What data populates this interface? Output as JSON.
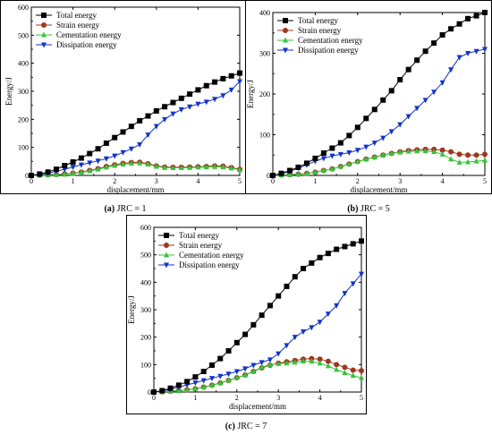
{
  "legend_labels": [
    "Total energy",
    "Strain energy",
    "Cementation energy",
    "Dissipation energy"
  ],
  "series_colors": {
    "total": "#000000",
    "strain": "#a0361f",
    "cementation": "#37c43a",
    "dissipation": "#1233c9"
  },
  "chart_data": [
    {
      "type": "line",
      "caption_tag": "(a)",
      "caption_text": "JRC = 1",
      "xlabel": "displacement/mm",
      "ylabel": "Energy/J",
      "xlim": [
        0,
        5
      ],
      "ylim": [
        0,
        600
      ],
      "xticks": [
        0,
        1,
        2,
        3,
        4,
        5
      ],
      "yticks": [
        0,
        100,
        200,
        300,
        400,
        500,
        600
      ],
      "legend": "top-left",
      "grid": false,
      "series": [
        {
          "name": "Total energy",
          "key": "total",
          "marker": "square",
          "x": [
            0,
            0.2,
            0.4,
            0.6,
            0.8,
            1.0,
            1.2,
            1.4,
            1.6,
            1.8,
            2.0,
            2.2,
            2.4,
            2.6,
            2.8,
            3.0,
            3.2,
            3.4,
            3.6,
            3.8,
            4.0,
            4.2,
            4.4,
            4.6,
            4.8,
            5.0
          ],
          "y": [
            0,
            5,
            12,
            22,
            35,
            48,
            62,
            78,
            95,
            115,
            135,
            155,
            175,
            195,
            212,
            230,
            245,
            260,
            275,
            290,
            305,
            320,
            333,
            345,
            355,
            365
          ]
        },
        {
          "name": "Strain energy",
          "key": "strain",
          "marker": "circle",
          "x": [
            0,
            0.2,
            0.4,
            0.6,
            0.8,
            1.0,
            1.2,
            1.4,
            1.6,
            1.8,
            2.0,
            2.2,
            2.4,
            2.6,
            2.8,
            3.0,
            3.2,
            3.4,
            3.6,
            3.8,
            4.0,
            4.2,
            4.4,
            4.6,
            4.8,
            5.0
          ],
          "y": [
            0,
            1,
            2,
            3,
            5,
            8,
            12,
            18,
            24,
            32,
            38,
            43,
            46,
            47,
            42,
            34,
            30,
            29,
            29,
            30,
            31,
            32,
            34,
            33,
            28,
            22
          ]
        },
        {
          "name": "Cementation energy",
          "key": "cementation",
          "marker": "triangle-up",
          "x": [
            0,
            0.2,
            0.4,
            0.6,
            0.8,
            1.0,
            1.2,
            1.4,
            1.6,
            1.8,
            2.0,
            2.2,
            2.4,
            2.6,
            2.8,
            3.0,
            3.2,
            3.4,
            3.6,
            3.8,
            4.0,
            4.2,
            4.4,
            4.6,
            4.8,
            5.0
          ],
          "y": [
            0,
            1,
            2,
            3,
            4,
            7,
            11,
            16,
            22,
            29,
            35,
            40,
            43,
            44,
            40,
            32,
            28,
            27,
            27,
            28,
            29,
            30,
            31,
            30,
            26,
            20
          ]
        },
        {
          "name": "Dissipation energy",
          "key": "dissipation",
          "marker": "triangle-down",
          "x": [
            0,
            0.2,
            0.4,
            0.6,
            0.8,
            1.0,
            1.2,
            1.4,
            1.6,
            1.8,
            2.0,
            2.2,
            2.4,
            2.6,
            2.8,
            3.0,
            3.2,
            3.4,
            3.6,
            3.8,
            4.0,
            4.2,
            4.4,
            4.6,
            4.8,
            5.0
          ],
          "y": [
            0,
            3,
            8,
            15,
            22,
            30,
            38,
            45,
            52,
            60,
            70,
            82,
            95,
            110,
            145,
            175,
            200,
            220,
            235,
            245,
            255,
            262,
            272,
            285,
            305,
            335
          ]
        }
      ]
    },
    {
      "type": "line",
      "caption_tag": "(b)",
      "caption_text": "JRC = 5",
      "xlabel": "displacement/mm",
      "ylabel": "Energy/J",
      "xlim": [
        0,
        5
      ],
      "ylim": [
        0,
        400
      ],
      "xticks": [
        0,
        1,
        2,
        3,
        4,
        5
      ],
      "yticks": [
        0,
        100,
        200,
        300,
        400
      ],
      "legend": "top-left",
      "grid": false,
      "series": [
        {
          "name": "Total energy",
          "key": "total",
          "marker": "square",
          "x": [
            0,
            0.2,
            0.4,
            0.6,
            0.8,
            1.0,
            1.2,
            1.4,
            1.6,
            1.8,
            2.0,
            2.2,
            2.4,
            2.6,
            2.8,
            3.0,
            3.2,
            3.4,
            3.6,
            3.8,
            4.0,
            4.2,
            4.4,
            4.6,
            4.8,
            5.0
          ],
          "y": [
            0,
            5,
            12,
            20,
            30,
            42,
            55,
            67,
            80,
            98,
            118,
            140,
            162,
            185,
            208,
            235,
            260,
            283,
            305,
            325,
            345,
            360,
            372,
            385,
            392,
            400
          ]
        },
        {
          "name": "Strain energy",
          "key": "strain",
          "marker": "circle",
          "x": [
            0,
            0.2,
            0.4,
            0.6,
            0.8,
            1.0,
            1.2,
            1.4,
            1.6,
            1.8,
            2.0,
            2.2,
            2.4,
            2.6,
            2.8,
            3.0,
            3.2,
            3.4,
            3.6,
            3.8,
            4.0,
            4.2,
            4.4,
            4.6,
            4.8,
            5.0
          ],
          "y": [
            0,
            1,
            2,
            3,
            5,
            8,
            12,
            16,
            22,
            28,
            34,
            40,
            45,
            50,
            54,
            58,
            61,
            63,
            64,
            64,
            62,
            58,
            52,
            50,
            50,
            52
          ]
        },
        {
          "name": "Cementation energy",
          "key": "cementation",
          "marker": "triangle-up",
          "x": [
            0,
            0.2,
            0.4,
            0.6,
            0.8,
            1.0,
            1.2,
            1.4,
            1.6,
            1.8,
            2.0,
            2.2,
            2.4,
            2.6,
            2.8,
            3.0,
            3.2,
            3.4,
            3.6,
            3.8,
            4.0,
            4.2,
            4.4,
            4.6,
            4.8,
            5.0
          ],
          "y": [
            0,
            1,
            2,
            3,
            5,
            8,
            12,
            16,
            22,
            28,
            34,
            40,
            45,
            50,
            54,
            57,
            59,
            60,
            60,
            58,
            52,
            40,
            32,
            33,
            35,
            37
          ]
        },
        {
          "name": "Dissipation energy",
          "key": "dissipation",
          "marker": "triangle-down",
          "x": [
            0,
            0.2,
            0.4,
            0.6,
            0.8,
            1.0,
            1.2,
            1.4,
            1.6,
            1.8,
            2.0,
            2.2,
            2.4,
            2.6,
            2.8,
            3.0,
            3.2,
            3.4,
            3.6,
            3.8,
            4.0,
            4.2,
            4.4,
            4.6,
            4.8,
            5.0
          ],
          "y": [
            0,
            4,
            10,
            18,
            26,
            35,
            42,
            48,
            52,
            56,
            62,
            70,
            80,
            92,
            108,
            125,
            145,
            165,
            185,
            205,
            228,
            260,
            290,
            300,
            305,
            310
          ]
        }
      ]
    },
    {
      "type": "line",
      "caption_tag": "(c)",
      "caption_text": "JRC = 7",
      "xlabel": "displacement/mm",
      "ylabel": "Energy/J",
      "xlim": [
        0,
        5
      ],
      "ylim": [
        0,
        600
      ],
      "xticks": [
        0,
        1,
        2,
        3,
        4,
        5
      ],
      "yticks": [
        0,
        100,
        200,
        300,
        400,
        500,
        600
      ],
      "legend": "top-left",
      "grid": false,
      "series": [
        {
          "name": "Total energy",
          "key": "total",
          "marker": "square",
          "x": [
            0,
            0.2,
            0.4,
            0.6,
            0.8,
            1.0,
            1.2,
            1.4,
            1.6,
            1.8,
            2.0,
            2.2,
            2.4,
            2.6,
            2.8,
            3.0,
            3.2,
            3.4,
            3.6,
            3.8,
            4.0,
            4.2,
            4.4,
            4.6,
            4.8,
            5.0
          ],
          "y": [
            0,
            5,
            14,
            25,
            38,
            55,
            75,
            98,
            122,
            150,
            180,
            210,
            245,
            280,
            315,
            350,
            385,
            420,
            450,
            470,
            490,
            505,
            520,
            530,
            540,
            550
          ]
        },
        {
          "name": "Strain energy",
          "key": "strain",
          "marker": "circle",
          "x": [
            0,
            0.2,
            0.4,
            0.6,
            0.8,
            1.0,
            1.2,
            1.4,
            1.6,
            1.8,
            2.0,
            2.2,
            2.4,
            2.6,
            2.8,
            3.0,
            3.2,
            3.4,
            3.6,
            3.8,
            4.0,
            4.2,
            4.4,
            4.6,
            4.8,
            5.0
          ],
          "y": [
            0,
            1,
            3,
            5,
            8,
            12,
            18,
            25,
            33,
            42,
            52,
            62,
            75,
            88,
            98,
            105,
            110,
            115,
            120,
            122,
            120,
            112,
            100,
            90,
            80,
            78
          ]
        },
        {
          "name": "Cementation energy",
          "key": "cementation",
          "marker": "triangle-up",
          "x": [
            0,
            0.2,
            0.4,
            0.6,
            0.8,
            1.0,
            1.2,
            1.4,
            1.6,
            1.8,
            2.0,
            2.2,
            2.4,
            2.6,
            2.8,
            3.0,
            3.2,
            3.4,
            3.6,
            3.8,
            4.0,
            4.2,
            4.4,
            4.6,
            4.8,
            5.0
          ],
          "y": [
            0,
            1,
            3,
            5,
            8,
            12,
            18,
            25,
            33,
            42,
            52,
            62,
            75,
            90,
            100,
            103,
            105,
            108,
            112,
            112,
            105,
            95,
            82,
            70,
            60,
            52
          ]
        },
        {
          "name": "Dissipation energy",
          "key": "dissipation",
          "marker": "triangle-down",
          "x": [
            0,
            0.2,
            0.4,
            0.6,
            0.8,
            1.0,
            1.2,
            1.4,
            1.6,
            1.8,
            2.0,
            2.2,
            2.4,
            2.6,
            2.8,
            3.0,
            3.2,
            3.4,
            3.6,
            3.8,
            4.0,
            4.2,
            4.4,
            4.6,
            4.8,
            5.0
          ],
          "y": [
            0,
            4,
            10,
            18,
            26,
            34,
            42,
            50,
            58,
            66,
            75,
            85,
            98,
            108,
            118,
            140,
            170,
            200,
            220,
            235,
            255,
            285,
            315,
            360,
            395,
            430
          ]
        }
      ]
    }
  ]
}
